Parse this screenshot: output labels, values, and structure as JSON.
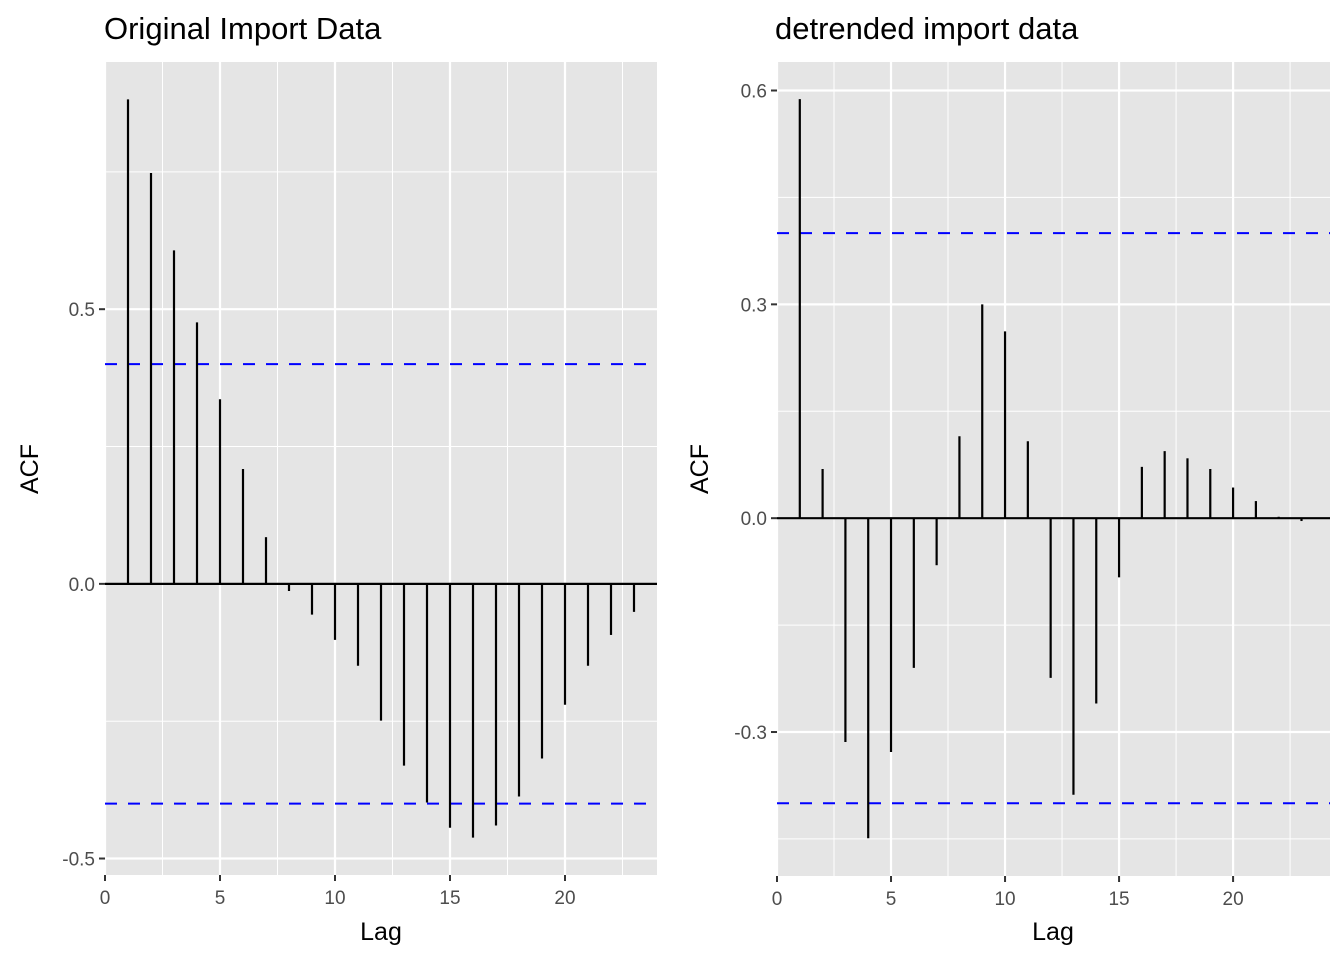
{
  "chart_data": [
    {
      "type": "bar",
      "subtype": "acf-stem",
      "title": "Original Import Data",
      "xlabel": "Lag",
      "ylabel": "ACF",
      "xlim": [
        0,
        24
      ],
      "ylim": [
        -0.53,
        0.95
      ],
      "xticks": [
        0,
        5,
        10,
        15,
        20
      ],
      "xtick_labels": [
        "0",
        "5",
        "10",
        "15",
        "20"
      ],
      "yticks": [
        -0.5,
        0.0,
        0.5
      ],
      "ytick_labels": [
        "-0.5",
        "0.0",
        "0.5"
      ],
      "minor_yticks": [
        -0.25,
        0.25,
        0.75
      ],
      "grid": true,
      "confidence_bounds": [
        0.4,
        -0.4
      ],
      "lags": [
        1,
        2,
        3,
        4,
        5,
        6,
        7,
        8,
        9,
        10,
        11,
        12,
        13,
        14,
        15,
        16,
        17,
        18,
        19,
        20,
        21,
        22,
        23
      ],
      "values": [
        0.882,
        0.748,
        0.607,
        0.476,
        0.336,
        0.209,
        0.085,
        -0.013,
        -0.056,
        -0.102,
        -0.149,
        -0.249,
        -0.331,
        -0.398,
        -0.444,
        -0.462,
        -0.44,
        -0.387,
        -0.318,
        -0.22,
        -0.149,
        -0.093,
        -0.051
      ]
    },
    {
      "type": "bar",
      "subtype": "acf-stem",
      "title": "detrended import data",
      "xlabel": "Lag",
      "ylabel": "ACF",
      "xlim": [
        0,
        24.25
      ],
      "ylim": [
        -0.502,
        0.64
      ],
      "xticks": [
        0,
        5,
        10,
        15,
        20
      ],
      "xtick_labels": [
        "0",
        "5",
        "10",
        "15",
        "20"
      ],
      "yticks": [
        -0.3,
        0.0,
        0.3,
        0.6
      ],
      "ytick_labels": [
        "-0.3",
        "0.0",
        "0.3",
        "0.6"
      ],
      "minor_yticks": [
        -0.45,
        -0.15,
        0.15,
        0.45
      ],
      "grid": true,
      "confidence_bounds": [
        0.4,
        -0.4
      ],
      "lags": [
        1,
        2,
        3,
        4,
        5,
        6,
        7,
        8,
        9,
        10,
        11,
        12,
        13,
        14,
        15,
        16,
        17,
        18,
        19,
        20,
        21,
        22,
        23
      ],
      "values": [
        0.588,
        0.069,
        -0.314,
        -0.449,
        -0.328,
        -0.21,
        -0.066,
        0.115,
        0.3,
        0.262,
        0.108,
        -0.224,
        -0.388,
        -0.26,
        -0.083,
        0.072,
        0.094,
        0.084,
        0.069,
        0.043,
        0.024,
        0.002,
        -0.004
      ]
    }
  ],
  "colors": {
    "panel_background": "#e5e5e5",
    "grid": "#ffffff",
    "stem": "#000000",
    "confidence_line": "#0000ff",
    "tick_text": "#4d4d4d"
  }
}
